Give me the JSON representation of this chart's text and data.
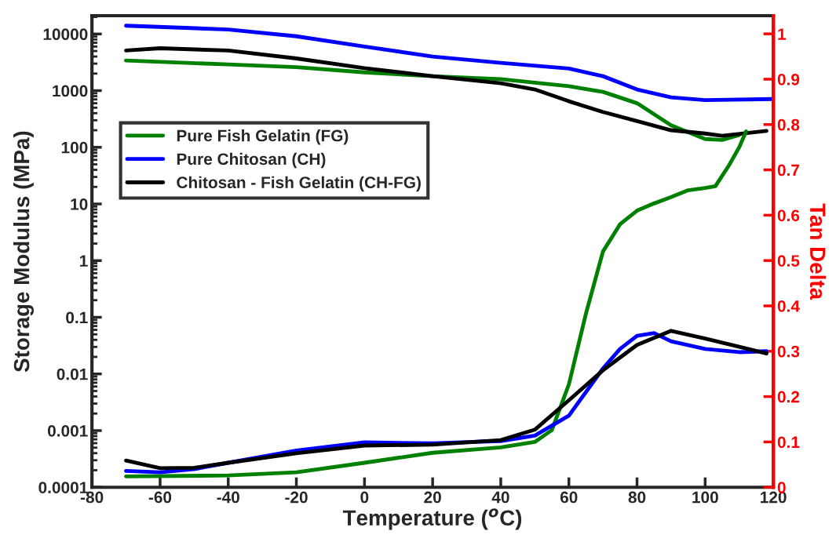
{
  "chart_data": {
    "type": "line",
    "xlabel": "Temperature ($^{o}$C)",
    "ylabel": "Storage Modulus (MPa)",
    "y2label": "Tan Delta",
    "xlim": [
      -80,
      120
    ],
    "xticks": [
      -80,
      -60,
      -40,
      -20,
      0,
      20,
      40,
      60,
      80,
      100,
      120
    ],
    "ylim": [
      0.0001,
      21000
    ],
    "yticks": [
      0.0001,
      0.001,
      0.01,
      0.1,
      1,
      10,
      100,
      1000,
      10000
    ],
    "log": "y",
    "y2lim": [
      0,
      1.04
    ],
    "y2ticks": [
      0,
      0.1,
      0.2,
      0.3,
      0.4,
      0.5,
      0.6,
      0.7,
      0.8,
      0.9,
      1
    ],
    "legend": "top left",
    "grid": false,
    "series": [
      {
        "name": "Pure Fish Gelatin (FG)",
        "color": "#008000",
        "x": [
          -70,
          -40,
          -20,
          0,
          20,
          40,
          60,
          70,
          80,
          90,
          100,
          105,
          110
        ],
        "values": [
          3400,
          2900,
          2600,
          2100,
          1800,
          1600,
          1200,
          950,
          600,
          245,
          140,
          135,
          165
        ]
      },
      {
        "name": "Pure Chitosan (CH)",
        "color": "#0000ff",
        "x": [
          -70,
          -40,
          -20,
          0,
          20,
          40,
          60,
          70,
          80,
          90,
          100,
          120
        ],
        "values": [
          14000,
          12000,
          9100,
          6000,
          4000,
          3100,
          2450,
          1800,
          1050,
          760,
          680,
          710
        ]
      },
      {
        "name": "Chitosan - Fish Gelatin (CH-FG)",
        "color": "#000000",
        "x": [
          -70,
          -60,
          -40,
          -20,
          0,
          20,
          40,
          50,
          60,
          70,
          80,
          90,
          100,
          105,
          118
        ],
        "values": [
          5100,
          5600,
          5100,
          3700,
          2500,
          1800,
          1350,
          1050,
          650,
          420,
          290,
          200,
          175,
          160,
          195
        ]
      },
      {
        "color": "#008000",
        "axis": "y2",
        "x": [
          -70,
          -40,
          -20,
          0,
          20,
          40,
          50,
          55,
          60,
          65,
          70,
          75,
          80,
          85,
          90,
          95,
          100,
          103,
          107,
          110,
          112
        ],
        "values": [
          0.024,
          0.026,
          0.033,
          0.054,
          0.076,
          0.088,
          0.1,
          0.126,
          0.227,
          0.383,
          0.52,
          0.58,
          0.61,
          0.626,
          0.64,
          0.655,
          0.66,
          0.664,
          0.71,
          0.75,
          0.785
        ]
      },
      {
        "color": "#0000ff",
        "axis": "y2",
        "x": [
          -70,
          -60,
          -50,
          -40,
          -20,
          0,
          20,
          40,
          50,
          60,
          65,
          70,
          75,
          80,
          85,
          90,
          100,
          110,
          118
        ],
        "values": [
          0.036,
          0.033,
          0.04,
          0.054,
          0.081,
          0.099,
          0.097,
          0.102,
          0.114,
          0.158,
          0.21,
          0.262,
          0.305,
          0.334,
          0.34,
          0.322,
          0.305,
          0.298,
          0.3
        ]
      },
      {
        "color": "#000000",
        "axis": "y2",
        "x": [
          -70,
          -60,
          -50,
          -40,
          -20,
          0,
          20,
          40,
          50,
          60,
          70,
          80,
          90,
          100,
          110,
          118
        ],
        "values": [
          0.059,
          0.042,
          0.043,
          0.054,
          0.075,
          0.092,
          0.094,
          0.104,
          0.127,
          0.192,
          0.258,
          0.314,
          0.345,
          0.328,
          0.31,
          0.295
        ]
      }
    ]
  }
}
